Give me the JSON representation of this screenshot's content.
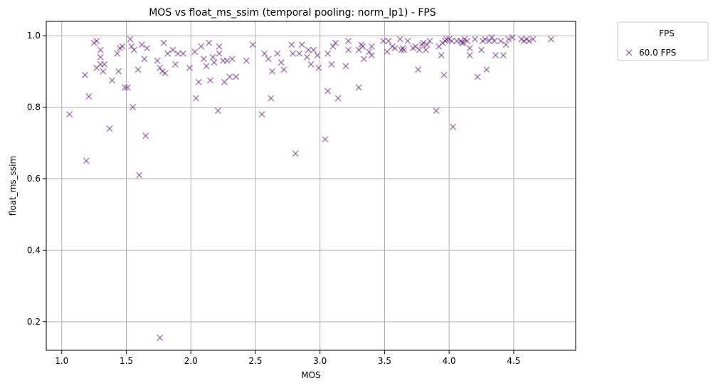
{
  "chart_data": {
    "type": "scatter",
    "title": "MOS vs float_ms_ssim (temporal pooling: norm_lp1) - FPS",
    "xlabel": "MOS",
    "ylabel": "float_ms_ssim",
    "xlim": [
      0.88,
      4.98
    ],
    "ylim": [
      0.12,
      1.04
    ],
    "xticks": [
      1.0,
      1.5,
      2.0,
      2.5,
      3.0,
      3.5,
      4.0,
      4.5
    ],
    "xtick_labels": [
      "1.0",
      "1.5",
      "2.0",
      "2.5",
      "3.0",
      "3.5",
      "4.0",
      "4.5"
    ],
    "yticks": [
      0.2,
      0.4,
      0.6,
      0.8,
      1.0
    ],
    "ytick_labels": [
      "0.2",
      "0.4",
      "0.6",
      "0.8",
      "1.0"
    ],
    "grid": true,
    "marker": "x",
    "color": "#6b2a80",
    "legend": {
      "title": "FPS",
      "placement": "outside-top-right",
      "entries": [
        "60.0 FPS"
      ]
    },
    "series": [
      {
        "name": "60.0 FPS",
        "points": [
          [
            1.06,
            0.78
          ],
          [
            1.18,
            0.89
          ],
          [
            1.19,
            0.65
          ],
          [
            1.21,
            0.83
          ],
          [
            1.25,
            0.98
          ],
          [
            1.27,
            0.985
          ],
          [
            1.27,
            0.91
          ],
          [
            1.3,
            0.96
          ],
          [
            1.3,
            0.94
          ],
          [
            1.3,
            0.92
          ],
          [
            1.32,
            0.9
          ],
          [
            1.33,
            0.92
          ],
          [
            1.37,
            0.74
          ],
          [
            1.39,
            0.875
          ],
          [
            1.43,
            0.95
          ],
          [
            1.44,
            0.9
          ],
          [
            1.45,
            0.965
          ],
          [
            1.47,
            0.97
          ],
          [
            1.49,
            0.855
          ],
          [
            1.51,
            0.855
          ],
          [
            1.53,
            0.99
          ],
          [
            1.54,
            0.97
          ],
          [
            1.55,
            0.8
          ],
          [
            1.56,
            0.96
          ],
          [
            1.59,
            0.905
          ],
          [
            1.6,
            0.61
          ],
          [
            1.62,
            0.975
          ],
          [
            1.64,
            0.935
          ],
          [
            1.65,
            0.72
          ],
          [
            1.66,
            0.965
          ],
          [
            1.74,
            0.93
          ],
          [
            1.76,
            0.155
          ],
          [
            1.76,
            0.91
          ],
          [
            1.78,
            0.9
          ],
          [
            1.79,
            0.98
          ],
          [
            1.8,
            0.895
          ],
          [
            1.82,
            0.95
          ],
          [
            1.86,
            0.96
          ],
          [
            1.88,
            0.92
          ],
          [
            1.9,
            0.95
          ],
          [
            1.94,
            0.95
          ],
          [
            1.99,
            0.91
          ],
          [
            2.03,
            0.955
          ],
          [
            2.04,
            0.825
          ],
          [
            2.06,
            0.87
          ],
          [
            2.08,
            0.97
          ],
          [
            2.1,
            0.935
          ],
          [
            2.12,
            0.915
          ],
          [
            2.14,
            0.98
          ],
          [
            2.15,
            0.875
          ],
          [
            2.17,
            0.94
          ],
          [
            2.18,
            0.925
          ],
          [
            2.21,
            0.79
          ],
          [
            2.22,
            0.97
          ],
          [
            2.22,
            0.95
          ],
          [
            2.25,
            0.93
          ],
          [
            2.26,
            0.87
          ],
          [
            2.28,
            0.93
          ],
          [
            2.3,
            0.885
          ],
          [
            2.32,
            0.935
          ],
          [
            2.35,
            0.885
          ],
          [
            2.43,
            0.93
          ],
          [
            2.48,
            0.975
          ],
          [
            2.55,
            0.78
          ],
          [
            2.57,
            0.95
          ],
          [
            2.6,
            0.935
          ],
          [
            2.62,
            0.825
          ],
          [
            2.63,
            0.9
          ],
          [
            2.67,
            0.95
          ],
          [
            2.7,
            0.925
          ],
          [
            2.72,
            0.905
          ],
          [
            2.78,
            0.975
          ],
          [
            2.79,
            0.95
          ],
          [
            2.81,
            0.67
          ],
          [
            2.84,
            0.95
          ],
          [
            2.86,
            0.975
          ],
          [
            2.9,
            0.94
          ],
          [
            2.91,
            0.96
          ],
          [
            2.93,
            0.92
          ],
          [
            2.95,
            0.96
          ],
          [
            2.98,
            0.945
          ],
          [
            2.99,
            0.91
          ],
          [
            3.04,
            0.71
          ],
          [
            3.06,
            0.845
          ],
          [
            3.06,
            0.95
          ],
          [
            3.09,
            0.92
          ],
          [
            3.1,
            0.97
          ],
          [
            3.12,
            0.98
          ],
          [
            3.14,
            0.825
          ],
          [
            3.2,
            0.915
          ],
          [
            3.22,
            0.985
          ],
          [
            3.22,
            0.96
          ],
          [
            3.3,
            0.855
          ],
          [
            3.3,
            0.96
          ],
          [
            3.32,
            0.975
          ],
          [
            3.33,
            0.97
          ],
          [
            3.34,
            0.935
          ],
          [
            3.38,
            0.955
          ],
          [
            3.4,
            0.945
          ],
          [
            3.4,
            0.97
          ],
          [
            3.49,
            0.985
          ],
          [
            3.52,
            0.955
          ],
          [
            3.53,
            0.985
          ],
          [
            3.56,
            0.97
          ],
          [
            3.58,
            0.965
          ],
          [
            3.62,
            0.99
          ],
          [
            3.63,
            0.96
          ],
          [
            3.64,
            0.965
          ],
          [
            3.65,
            0.96
          ],
          [
            3.68,
            0.985
          ],
          [
            3.72,
            0.965
          ],
          [
            3.74,
            0.97
          ],
          [
            3.76,
            0.905
          ],
          [
            3.77,
            0.96
          ],
          [
            3.79,
            0.975
          ],
          [
            3.8,
            0.98
          ],
          [
            3.82,
            0.96
          ],
          [
            3.83,
            0.975
          ],
          [
            3.85,
            0.985
          ],
          [
            3.9,
            0.79
          ],
          [
            3.92,
            0.97
          ],
          [
            3.94,
            0.945
          ],
          [
            3.95,
            0.98
          ],
          [
            3.96,
            0.89
          ],
          [
            3.97,
            0.985
          ],
          [
            3.98,
            0.99
          ],
          [
            4.0,
            0.99
          ],
          [
            4.02,
            0.985
          ],
          [
            4.03,
            0.745
          ],
          [
            4.06,
            0.985
          ],
          [
            4.09,
            0.985
          ],
          [
            4.1,
            0.98
          ],
          [
            4.11,
            0.98
          ],
          [
            4.12,
            0.99
          ],
          [
            4.14,
            0.985
          ],
          [
            4.16,
            0.965
          ],
          [
            4.16,
            0.945
          ],
          [
            4.2,
            0.99
          ],
          [
            4.22,
            0.885
          ],
          [
            4.25,
            0.96
          ],
          [
            4.26,
            0.985
          ],
          [
            4.28,
            0.99
          ],
          [
            4.29,
            0.905
          ],
          [
            4.31,
            0.985
          ],
          [
            4.33,
            0.995
          ],
          [
            4.35,
            0.985
          ],
          [
            4.36,
            0.945
          ],
          [
            4.4,
            0.985
          ],
          [
            4.42,
            0.945
          ],
          [
            4.44,
            0.975
          ],
          [
            4.46,
            0.99
          ],
          [
            4.49,
            0.995
          ],
          [
            4.56,
            0.99
          ],
          [
            4.58,
            0.985
          ],
          [
            4.6,
            0.99
          ],
          [
            4.62,
            0.985
          ],
          [
            4.65,
            0.99
          ],
          [
            4.79,
            0.99
          ]
        ]
      }
    ]
  }
}
